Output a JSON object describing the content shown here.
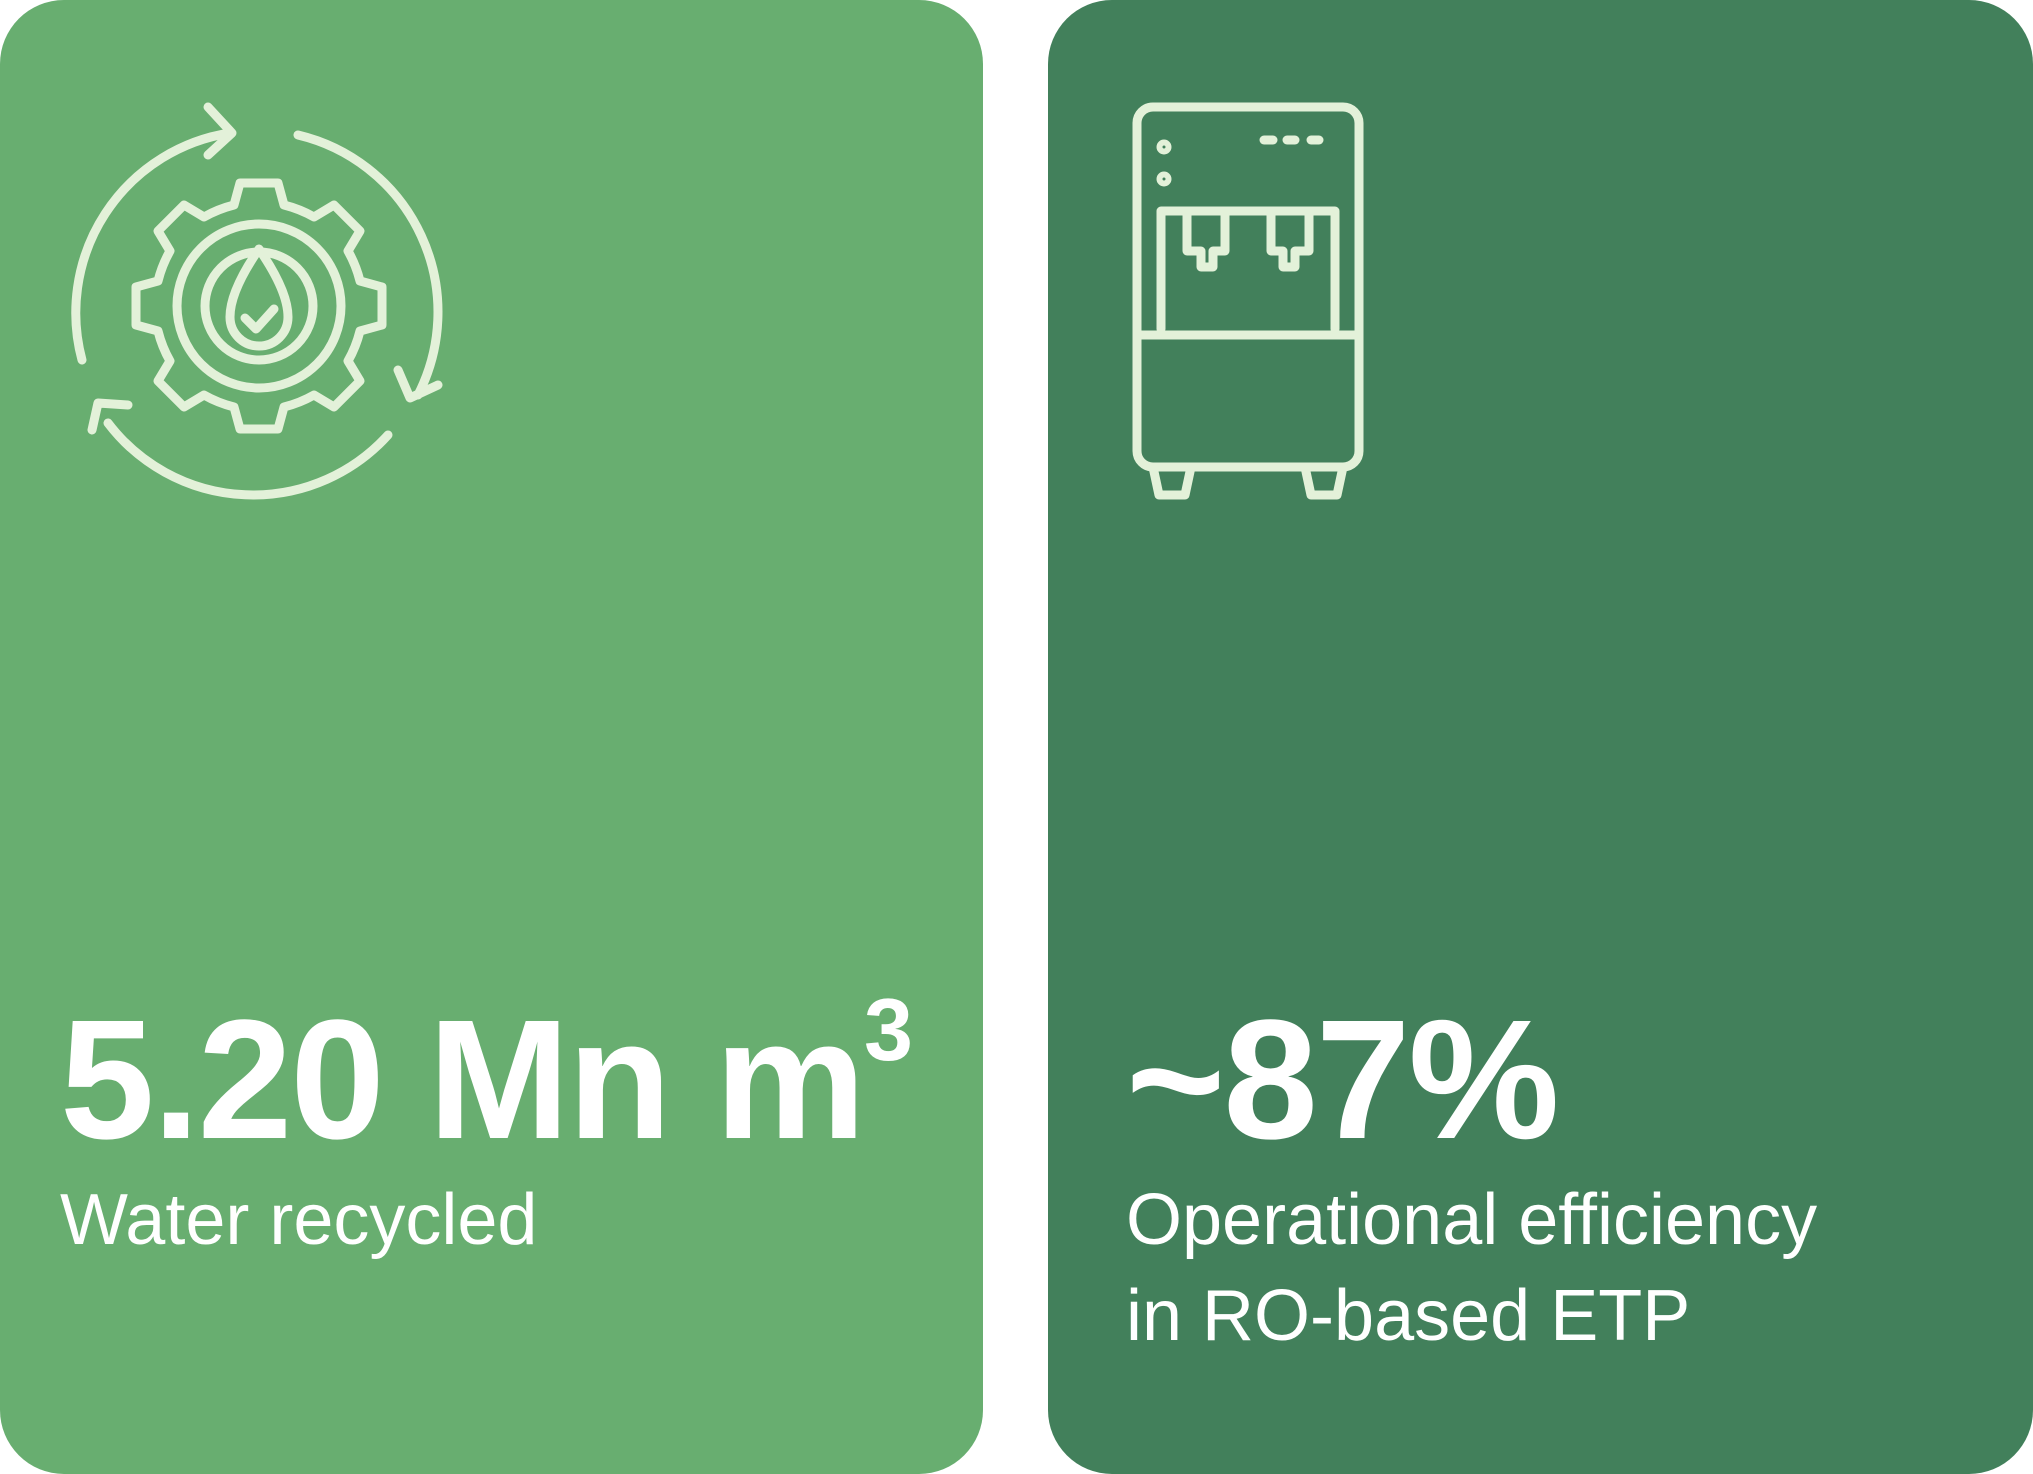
{
  "colors": {
    "left_card_bg": "#68ae70",
    "right_card_bg": "#42805b",
    "icon_stroke": "#e3f1d9",
    "text": "#ffffff"
  },
  "stats": [
    {
      "icon": "water-recycling-gear-icon",
      "value": "5.20 Mn m",
      "value_superscript": "3",
      "label": "Water recycled"
    },
    {
      "icon": "ro-water-purifier-icon",
      "value": "~87%",
      "label_line1": "Operational efficiency",
      "label_line2": "in RO-based ETP"
    }
  ]
}
